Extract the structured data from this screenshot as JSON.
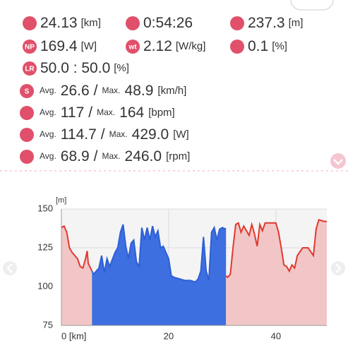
{
  "stats": [
    [
      {
        "value": "24.13",
        "unit": "[km]"
      },
      {
        "value": "0:54:26"
      },
      {
        "value": "237.3",
        "unit": "[m]"
      }
    ],
    [
      {
        "icon": "NP",
        "value": "169.4",
        "unit": "[W]"
      },
      {
        "icon": "wt",
        "value": "2.12",
        "unit": "[W/kg]"
      },
      {
        "value": "0.1",
        "unit": "[%]"
      }
    ],
    [
      {
        "icon": "LR",
        "value": "50.0 : 50.0",
        "unit": "[%]"
      }
    ]
  ],
  "averages": [
    {
      "icon": "S",
      "avg_label": "Avg.",
      "avg": "26.6",
      "sep": "/",
      "max_label": "Max.",
      "max": "48.9",
      "unit": "[km/h]"
    },
    {
      "avg_label": "Avg.",
      "avg": "117",
      "sep": "/",
      "max_label": "Max.",
      "max": "164",
      "unit": "[bpm]"
    },
    {
      "avg_label": "Avg.",
      "avg": "114.7",
      "sep": "/",
      "max_label": "Max.",
      "max": "429.0",
      "unit": "[W]"
    },
    {
      "avg_label": "Avg.",
      "avg": "68.9",
      "sep": "/",
      "max_label": "Max.",
      "max": "246.0",
      "unit": "[rpm]"
    }
  ],
  "chart_data": {
    "type": "area",
    "y_label": "[m]",
    "xlim": [
      0,
      49.5
    ],
    "ylim": [
      75,
      150
    ],
    "xticks": [
      {
        "value": 0,
        "label": "0 [km]"
      },
      20,
      40
    ],
    "yticks": [
      75,
      100,
      125,
      150
    ],
    "grid": true,
    "series": [
      {
        "color": "#e0392e",
        "fill": "#f2c6c6",
        "x": [
          0,
          0.5,
          1,
          1.5,
          2,
          2.5,
          3,
          3.5,
          4,
          4.5,
          4.8,
          5,
          5.7
        ],
        "values": [
          138,
          139,
          135,
          125,
          122,
          120,
          118,
          113,
          112,
          118,
          123,
          115,
          110
        ]
      },
      {
        "color": "#2d5fd6",
        "fill": "#3e6fe0",
        "x": [
          5.7,
          6,
          7,
          7.5,
          8,
          8.5,
          9,
          10,
          10.5,
          11,
          11.5,
          12,
          12.5,
          13,
          13.5,
          14,
          14.5,
          15,
          15.5,
          16,
          16.5,
          17,
          17.5,
          18,
          18.5,
          19,
          20,
          20.5,
          21,
          22,
          23,
          24,
          25,
          25.5,
          26,
          26.5,
          27,
          27.5,
          28,
          28.5,
          29,
          29.5,
          30,
          30.7
        ],
        "values": [
          110,
          108,
          112,
          120,
          109,
          118,
          113,
          122,
          125,
          135,
          140,
          126,
          118,
          128,
          130,
          116,
          113,
          138,
          130,
          138,
          130,
          139,
          132,
          136,
          125,
          126,
          118,
          107,
          106,
          105,
          104,
          104,
          103,
          105,
          110,
          132,
          110,
          104,
          135,
          138,
          130,
          137,
          138,
          137
        ]
      },
      {
        "color": "#e0392e",
        "fill": "#f2c6c6",
        "x": [
          30.7,
          31,
          31.5,
          32,
          32.5,
          33,
          33.5,
          34,
          35,
          35.5,
          36,
          36.5,
          37,
          37.5,
          38,
          39,
          40,
          40.5,
          41,
          41.5,
          42,
          42.5,
          43,
          43.5,
          44,
          45,
          46,
          47,
          47.5,
          48,
          49,
          49.5
        ],
        "values": [
          107,
          106,
          108,
          125,
          140,
          141,
          135,
          139,
          133,
          140,
          134,
          126,
          140,
          136,
          141,
          141,
          141,
          135,
          125,
          114,
          113,
          110,
          114,
          112,
          120,
          125,
          125,
          120,
          137,
          143,
          142,
          142
        ]
      }
    ]
  }
}
